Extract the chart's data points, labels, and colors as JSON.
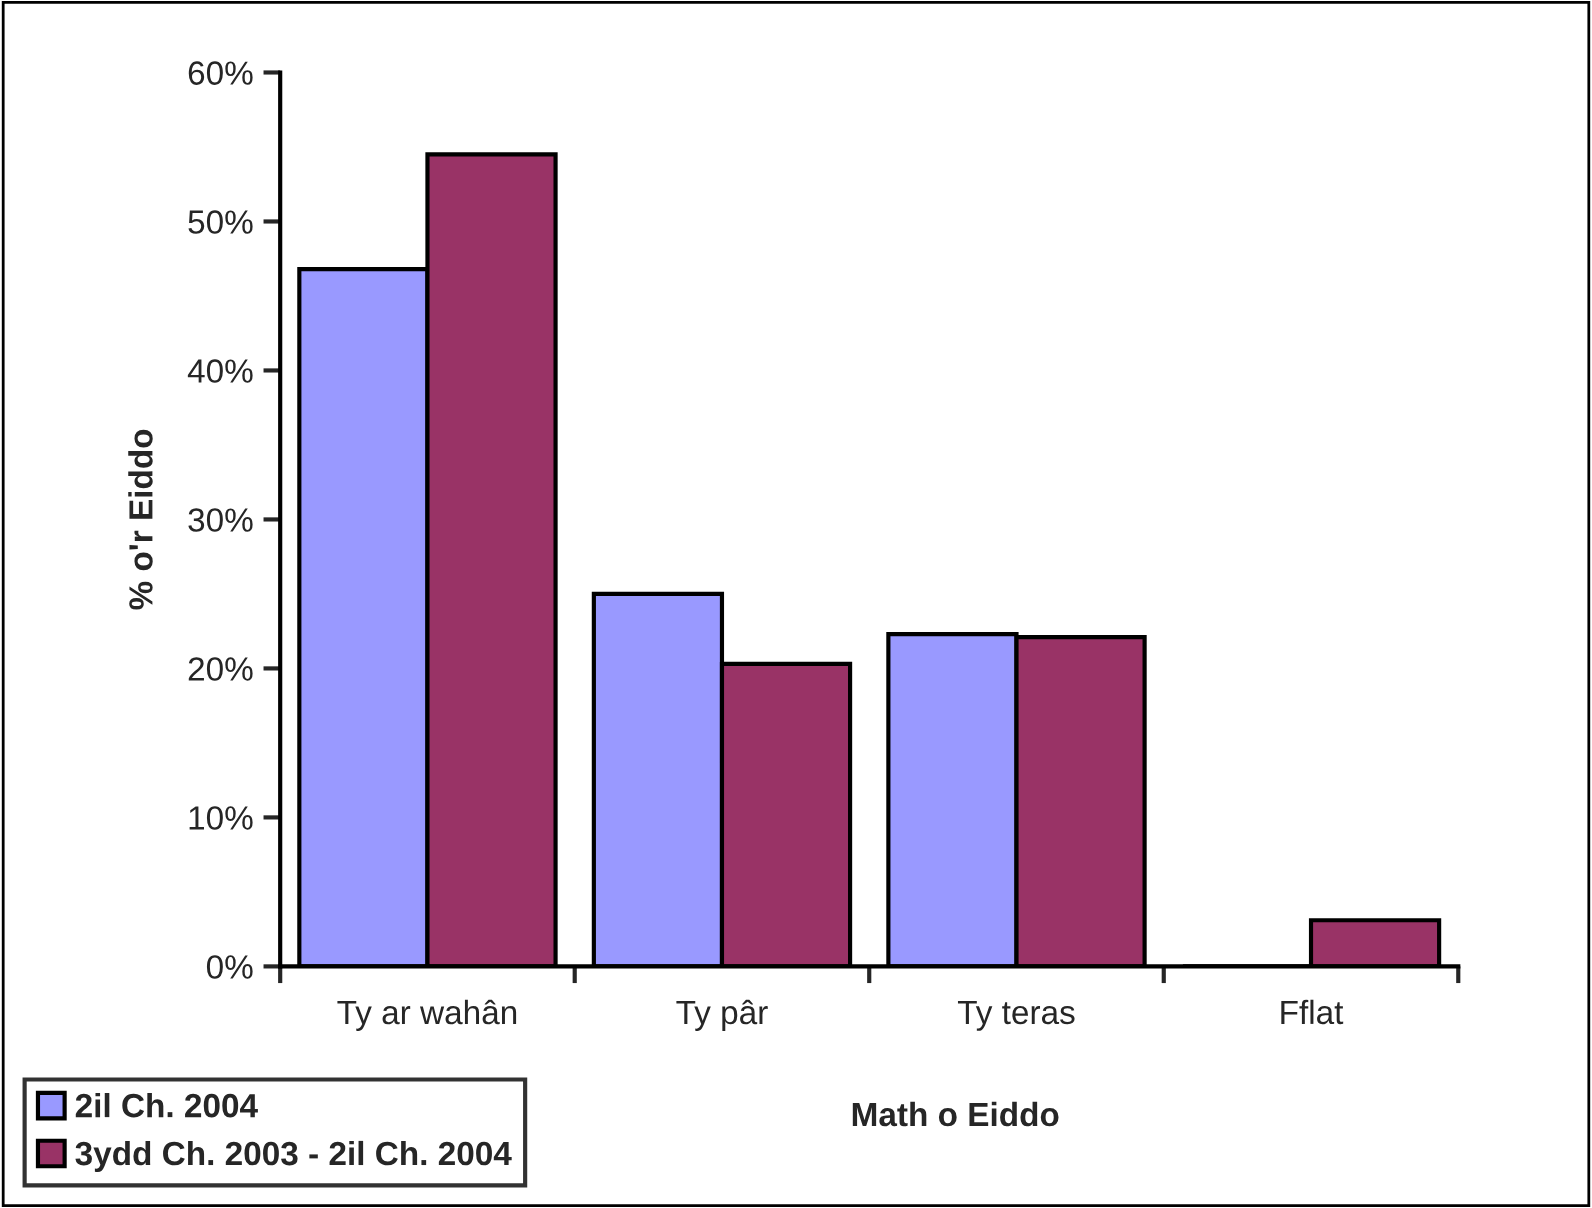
{
  "chart_data": {
    "type": "bar",
    "xlabel": "Math o Eiddo",
    "ylabel": "% o'r Eiddo",
    "categories": [
      "Ty ar wahân",
      "Ty pâr",
      "Ty teras",
      "Fflat"
    ],
    "series": [
      {
        "name": "2il Ch. 2004",
        "color": "#9999ff",
        "values": [
          46.8,
          25.0,
          22.3,
          0
        ]
      },
      {
        "name": "3ydd Ch. 2003 - 2il Ch. 2004",
        "color": "#993366",
        "values": [
          54.5,
          20.3,
          22.1,
          3.1
        ]
      }
    ],
    "ylim": [
      0,
      60
    ],
    "yticks": [
      {
        "value": 0,
        "label": "0%"
      },
      {
        "value": 10,
        "label": "10%"
      },
      {
        "value": 20,
        "label": "20%"
      },
      {
        "value": 30,
        "label": "30%"
      },
      {
        "value": 40,
        "label": "40%"
      },
      {
        "value": 50,
        "label": "50%"
      },
      {
        "value": 60,
        "label": "60%"
      }
    ],
    "grid": false,
    "legend": "bottom left"
  }
}
